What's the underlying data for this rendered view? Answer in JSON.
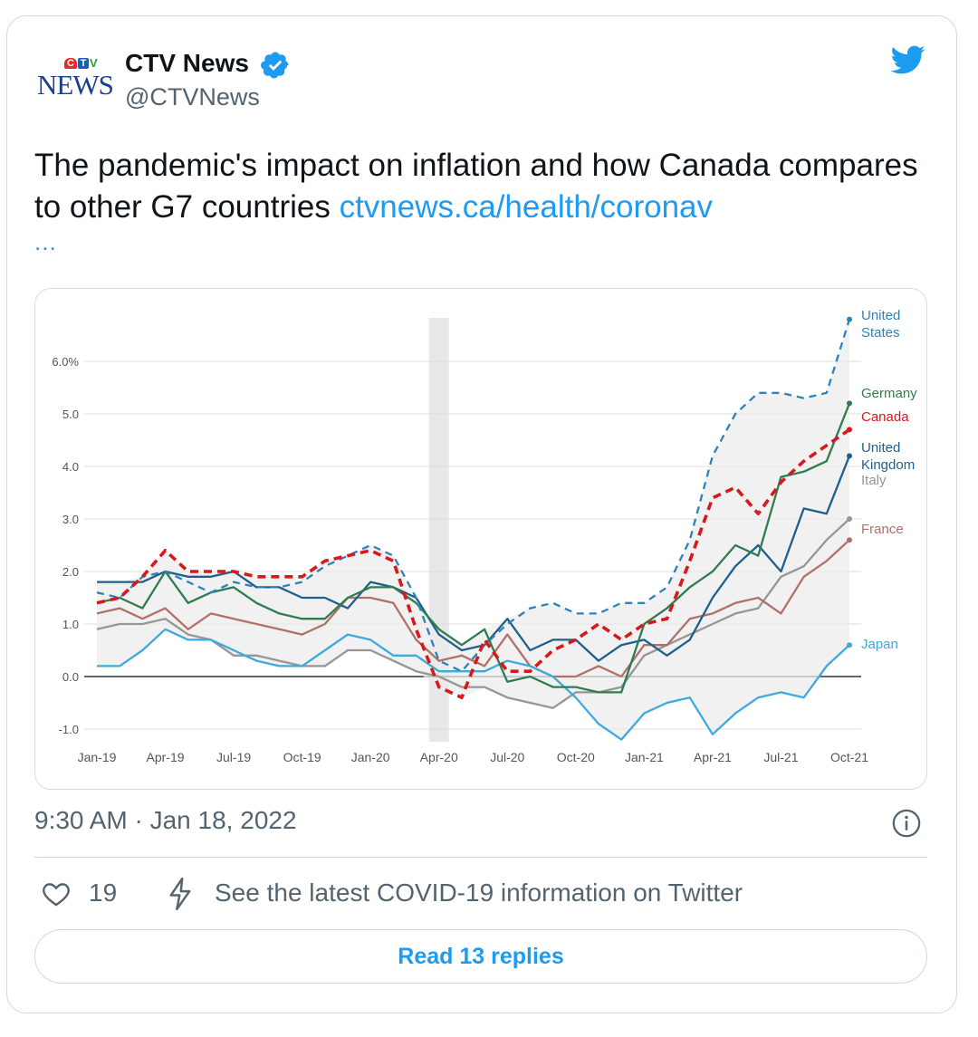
{
  "tweet": {
    "author": {
      "name": "CTV News",
      "handle": "@CTVNews",
      "logo_letters": [
        "C",
        "T",
        "V"
      ],
      "logo_word": "NEWS",
      "verified": true
    },
    "text": "The pandemic's impact on inflation and how Canada compares to other G7 countries ",
    "link_text": "ctvnews.ca/health/coronav",
    "more": "...",
    "timestamp": "9:30 AM · Jan 18, 2022",
    "likes": "19",
    "covid_info": "See the latest COVID-19 information on Twitter",
    "read_replies": "Read 13 replies"
  },
  "colors": {
    "link": "#1d9bf0",
    "secondary_text": "#536471",
    "border": "#cfd9de"
  },
  "chart_data": {
    "type": "line",
    "title": "",
    "xlabel": "",
    "ylabel": "",
    "ylim": [
      -1.0,
      7.0
    ],
    "yticks": [
      -1.0,
      0.0,
      1.0,
      2.0,
      3.0,
      4.0,
      5.0,
      6.0
    ],
    "ytick_labels": [
      "-1.0",
      "0.0",
      "1.0",
      "2.0",
      "3.0",
      "4.0",
      "5.0",
      "6.0%"
    ],
    "x": [
      "Jan-19",
      "Feb-19",
      "Mar-19",
      "Apr-19",
      "May-19",
      "Jun-19",
      "Jul-19",
      "Aug-19",
      "Sep-19",
      "Oct-19",
      "Nov-19",
      "Dec-19",
      "Jan-20",
      "Feb-20",
      "Mar-20",
      "Apr-20",
      "May-20",
      "Jun-20",
      "Jul-20",
      "Aug-20",
      "Sep-20",
      "Oct-20",
      "Nov-20",
      "Dec-20",
      "Jan-21",
      "Feb-21",
      "Mar-21",
      "Apr-21",
      "May-21",
      "Jun-21",
      "Jul-21",
      "Aug-21",
      "Sep-21",
      "Oct-21"
    ],
    "xtick_labels": [
      "Jan-19",
      "Apr-19",
      "Jul-19",
      "Oct-19",
      "Jan-20",
      "Apr-20",
      "Jul-20",
      "Oct-20",
      "Jan-21",
      "Apr-21",
      "Jul-21",
      "Oct-21"
    ],
    "shaded_band_x": "Apr-20",
    "grid": true,
    "legend": "end-of-line labels",
    "series": [
      {
        "name": "United States",
        "color": "#2b83ba",
        "dash": "dashed",
        "label_lines": [
          "United",
          "States"
        ],
        "values": [
          1.6,
          1.5,
          1.9,
          2.0,
          1.8,
          1.6,
          1.8,
          1.7,
          1.7,
          1.8,
          2.1,
          2.3,
          2.5,
          2.3,
          1.5,
          0.3,
          0.1,
          0.6,
          1.0,
          1.3,
          1.4,
          1.2,
          1.2,
          1.4,
          1.4,
          1.7,
          2.6,
          4.2,
          5.0,
          5.4,
          5.4,
          5.3,
          5.4,
          6.8
        ]
      },
      {
        "name": "Germany",
        "color": "#2e7d4f",
        "dash": "solid",
        "label_lines": [
          "Germany"
        ],
        "values": [
          1.4,
          1.5,
          1.3,
          2.0,
          1.4,
          1.6,
          1.7,
          1.4,
          1.2,
          1.1,
          1.1,
          1.5,
          1.7,
          1.7,
          1.4,
          0.9,
          0.6,
          0.9,
          -0.1,
          0.0,
          -0.2,
          -0.2,
          -0.3,
          -0.3,
          1.0,
          1.3,
          1.7,
          2.0,
          2.5,
          2.3,
          3.8,
          3.9,
          4.1,
          5.2
        ]
      },
      {
        "name": "Canada",
        "color": "#d7191c",
        "dash": "dashed",
        "label_lines": [
          "Canada"
        ],
        "values": [
          1.4,
          1.5,
          1.9,
          2.4,
          2.0,
          2.0,
          2.0,
          1.9,
          1.9,
          1.9,
          2.2,
          2.3,
          2.4,
          2.2,
          0.9,
          -0.2,
          -0.4,
          0.7,
          0.1,
          0.1,
          0.5,
          0.7,
          1.0,
          0.7,
          1.0,
          1.1,
          2.2,
          3.4,
          3.6,
          3.1,
          3.7,
          4.1,
          4.4,
          4.7
        ]
      },
      {
        "name": "United Kingdom",
        "color": "#1f5f8b",
        "dash": "solid",
        "label_lines": [
          "United",
          "Kingdom"
        ],
        "values": [
          1.8,
          1.8,
          1.8,
          2.0,
          1.9,
          1.9,
          2.0,
          1.7,
          1.7,
          1.5,
          1.5,
          1.3,
          1.8,
          1.7,
          1.5,
          0.8,
          0.5,
          0.6,
          1.1,
          0.5,
          0.7,
          0.7,
          0.3,
          0.6,
          0.7,
          0.4,
          0.7,
          1.5,
          2.1,
          2.5,
          2.0,
          3.2,
          3.1,
          4.2
        ]
      },
      {
        "name": "Italy",
        "color": "#969696",
        "dash": "solid",
        "label_lines": [
          "Italy"
        ],
        "values": [
          0.9,
          1.0,
          1.0,
          1.1,
          0.8,
          0.7,
          0.4,
          0.4,
          0.3,
          0.2,
          0.2,
          0.5,
          0.5,
          0.3,
          0.1,
          0.0,
          -0.2,
          -0.2,
          -0.4,
          -0.5,
          -0.6,
          -0.3,
          -0.3,
          -0.2,
          0.4,
          0.6,
          0.8,
          1.0,
          1.2,
          1.3,
          1.9,
          2.1,
          2.6,
          3.0
        ]
      },
      {
        "name": "France",
        "color": "#b2706a",
        "dash": "solid",
        "label_lines": [
          "France"
        ],
        "values": [
          1.2,
          1.3,
          1.1,
          1.3,
          0.9,
          1.2,
          1.1,
          1.0,
          0.9,
          0.8,
          1.0,
          1.5,
          1.5,
          1.4,
          0.7,
          0.3,
          0.4,
          0.2,
          0.8,
          0.2,
          0.0,
          0.0,
          0.2,
          0.0,
          0.6,
          0.6,
          1.1,
          1.2,
          1.4,
          1.5,
          1.2,
          1.9,
          2.2,
          2.6
        ]
      },
      {
        "name": "Japan",
        "color": "#3fa9dd",
        "dash": "solid",
        "label_lines": [
          "Japan"
        ],
        "values": [
          0.2,
          0.2,
          0.5,
          0.9,
          0.7,
          0.7,
          0.5,
          0.3,
          0.2,
          0.2,
          0.5,
          0.8,
          0.7,
          0.4,
          0.4,
          0.1,
          0.1,
          0.1,
          0.3,
          0.2,
          0.0,
          -0.4,
          -0.9,
          -1.2,
          -0.7,
          -0.5,
          -0.4,
          -1.1,
          -0.7,
          -0.4,
          -0.3,
          -0.4,
          0.2,
          0.6
        ]
      }
    ]
  }
}
